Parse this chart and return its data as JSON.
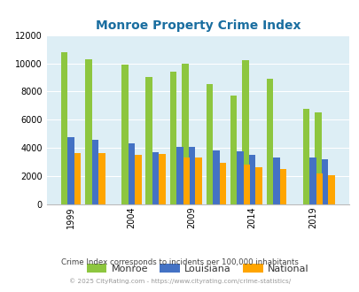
{
  "title": "Monroe Property Crime Index",
  "title_color": "#1a6ea0",
  "background_color": "#ddeef5",
  "fig_background": "#ffffff",
  "ylim": [
    0,
    12000
  ],
  "yticks": [
    0,
    2000,
    4000,
    6000,
    8000,
    10000,
    12000
  ],
  "xtick_labels": [
    "1999",
    "2004",
    "2009",
    "2014",
    "2019"
  ],
  "xtick_positions": [
    1999,
    2004,
    2009,
    2014,
    2019
  ],
  "years": [
    1999,
    2001,
    2004,
    2006,
    2008,
    2009,
    2011,
    2013,
    2014,
    2016,
    2019,
    2020
  ],
  "monroe": [
    10800,
    10300,
    9900,
    9000,
    9400,
    10000,
    8550,
    7700,
    10200,
    8900,
    6800,
    6550
  ],
  "louisiana": [
    4750,
    4600,
    4350,
    3700,
    4050,
    4100,
    3850,
    3750,
    3500,
    3350,
    3300,
    3200
  ],
  "national": [
    3650,
    3650,
    3500,
    3550,
    3350,
    3300,
    2950,
    2850,
    2650,
    2500,
    2200,
    2100
  ],
  "series_colors": [
    "#8dc63f",
    "#4472c4",
    "#ffa500"
  ],
  "series_labels": [
    "Monroe",
    "Louisiana",
    "National"
  ],
  "footnote1": "Crime Index corresponds to incidents per 100,000 inhabitants",
  "footnote2": "© 2025 CityRating.com - https://www.cityrating.com/crime-statistics/",
  "footnote1_color": "#444444",
  "footnote2_color": "#999999",
  "legend_label_color": "#333333"
}
